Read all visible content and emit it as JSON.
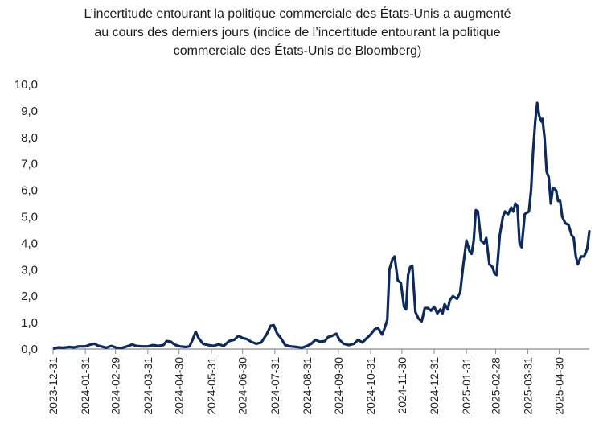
{
  "chart_data": {
    "type": "line",
    "title": [
      "L’incertitude entourant la politique commerciale des États-Unis a augmenté",
      "au cours des derniers jours (indice de l’incertitude entourant la politique",
      "commerciale des États-Unis de Bloomberg)"
    ],
    "xlabel": "",
    "ylabel": "",
    "x_range": [
      "2023-12-31",
      "2025-05-29"
    ],
    "ylim": [
      0,
      10
    ],
    "y_ticks": [
      "0,0",
      "1,0",
      "2,0",
      "3,0",
      "4,0",
      "5,0",
      "6,0",
      "7,0",
      "8,0",
      "9,0",
      "10,0"
    ],
    "x_ticks": [
      "2023-12-31",
      "2024-01-31",
      "2024-02-29",
      "2024-03-31",
      "2024-04-30",
      "2024-05-31",
      "2024-06-30",
      "2024-07-31",
      "2024-08-31",
      "2024-09-30",
      "2024-10-31",
      "2024-11-30",
      "2024-12-31",
      "2025-01-31",
      "2025-02-28",
      "2025-03-31",
      "2025-04-30"
    ],
    "grid": false,
    "line_color": "#0e2a5c",
    "series": [
      {
        "points": [
          [
            "2024-01-01",
            0.02
          ],
          [
            "2024-01-05",
            0.06
          ],
          [
            "2024-01-10",
            0.05
          ],
          [
            "2024-01-15",
            0.08
          ],
          [
            "2024-01-20",
            0.06
          ],
          [
            "2024-01-25",
            0.1
          ],
          [
            "2024-01-31",
            0.1
          ],
          [
            "2024-02-05",
            0.17
          ],
          [
            "2024-02-09",
            0.2
          ],
          [
            "2024-02-12",
            0.13
          ],
          [
            "2024-02-15",
            0.1
          ],
          [
            "2024-02-20",
            0.05
          ],
          [
            "2024-02-25",
            0.12
          ],
          [
            "2024-03-01",
            0.05
          ],
          [
            "2024-03-06",
            0.04
          ],
          [
            "2024-03-11",
            0.1
          ],
          [
            "2024-03-16",
            0.17
          ],
          [
            "2024-03-20",
            0.12
          ],
          [
            "2024-03-25",
            0.1
          ],
          [
            "2024-03-31",
            0.1
          ],
          [
            "2024-04-05",
            0.15
          ],
          [
            "2024-04-10",
            0.12
          ],
          [
            "2024-04-15",
            0.15
          ],
          [
            "2024-04-18",
            0.3
          ],
          [
            "2024-04-22",
            0.28
          ],
          [
            "2024-04-26",
            0.16
          ],
          [
            "2024-05-01",
            0.1
          ],
          [
            "2024-05-06",
            0.08
          ],
          [
            "2024-05-10",
            0.1
          ],
          [
            "2024-05-13",
            0.35
          ],
          [
            "2024-05-16",
            0.65
          ],
          [
            "2024-05-19",
            0.4
          ],
          [
            "2024-05-23",
            0.2
          ],
          [
            "2024-05-28",
            0.15
          ],
          [
            "2024-06-02",
            0.12
          ],
          [
            "2024-06-07",
            0.18
          ],
          [
            "2024-06-12",
            0.12
          ],
          [
            "2024-06-17",
            0.3
          ],
          [
            "2024-06-22",
            0.35
          ],
          [
            "2024-06-26",
            0.5
          ],
          [
            "2024-06-30",
            0.42
          ],
          [
            "2024-07-04",
            0.38
          ],
          [
            "2024-07-08",
            0.28
          ],
          [
            "2024-07-13",
            0.2
          ],
          [
            "2024-07-18",
            0.25
          ],
          [
            "2024-07-23",
            0.55
          ],
          [
            "2024-07-27",
            0.88
          ],
          [
            "2024-07-30",
            0.9
          ],
          [
            "2024-08-02",
            0.6
          ],
          [
            "2024-08-06",
            0.4
          ],
          [
            "2024-08-10",
            0.15
          ],
          [
            "2024-08-15",
            0.1
          ],
          [
            "2024-08-21",
            0.08
          ],
          [
            "2024-08-26",
            0.05
          ],
          [
            "2024-08-31",
            0.12
          ],
          [
            "2024-09-04",
            0.2
          ],
          [
            "2024-09-08",
            0.35
          ],
          [
            "2024-09-12",
            0.28
          ],
          [
            "2024-09-17",
            0.3
          ],
          [
            "2024-09-20",
            0.45
          ],
          [
            "2024-09-24",
            0.5
          ],
          [
            "2024-09-28",
            0.58
          ],
          [
            "2024-10-01",
            0.35
          ],
          [
            "2024-10-05",
            0.2
          ],
          [
            "2024-10-10",
            0.15
          ],
          [
            "2024-10-15",
            0.2
          ],
          [
            "2024-10-19",
            0.35
          ],
          [
            "2024-10-23",
            0.25
          ],
          [
            "2024-10-27",
            0.4
          ],
          [
            "2024-10-31",
            0.55
          ],
          [
            "2024-11-04",
            0.75
          ],
          [
            "2024-11-07",
            0.8
          ],
          [
            "2024-11-11",
            0.55
          ],
          [
            "2024-11-13",
            0.75
          ],
          [
            "2024-11-16",
            1.1
          ],
          [
            "2024-11-18",
            3.0
          ],
          [
            "2024-11-21",
            3.4
          ],
          [
            "2024-11-23",
            3.5
          ],
          [
            "2024-11-26",
            2.6
          ],
          [
            "2024-11-29",
            2.5
          ],
          [
            "2024-12-02",
            1.6
          ],
          [
            "2024-12-04",
            1.5
          ],
          [
            "2024-12-06",
            2.8
          ],
          [
            "2024-12-08",
            3.1
          ],
          [
            "2024-12-10",
            3.15
          ],
          [
            "2024-12-13",
            1.4
          ],
          [
            "2024-12-16",
            1.15
          ],
          [
            "2024-12-19",
            1.05
          ],
          [
            "2024-12-22",
            1.55
          ],
          [
            "2024-12-25",
            1.55
          ],
          [
            "2024-12-28",
            1.45
          ],
          [
            "2024-12-31",
            1.6
          ],
          [
            "2025-01-03",
            1.35
          ],
          [
            "2025-01-06",
            1.5
          ],
          [
            "2025-01-08",
            1.35
          ],
          [
            "2025-01-10",
            1.7
          ],
          [
            "2025-01-13",
            1.5
          ],
          [
            "2025-01-15",
            1.85
          ],
          [
            "2025-01-18",
            2.0
          ],
          [
            "2025-01-22",
            1.9
          ],
          [
            "2025-01-25",
            2.15
          ],
          [
            "2025-01-28",
            3.2
          ],
          [
            "2025-01-31",
            4.1
          ],
          [
            "2025-02-03",
            3.7
          ],
          [
            "2025-02-05",
            3.6
          ],
          [
            "2025-02-07",
            4.1
          ],
          [
            "2025-02-09",
            5.25
          ],
          [
            "2025-02-11",
            5.2
          ],
          [
            "2025-02-14",
            4.1
          ],
          [
            "2025-02-17",
            4.0
          ],
          [
            "2025-02-19",
            4.2
          ],
          [
            "2025-02-22",
            3.2
          ],
          [
            "2025-02-25",
            3.1
          ],
          [
            "2025-02-27",
            2.85
          ],
          [
            "2025-03-01",
            2.8
          ],
          [
            "2025-03-04",
            4.3
          ],
          [
            "2025-03-07",
            5.0
          ],
          [
            "2025-03-09",
            5.2
          ],
          [
            "2025-03-12",
            5.1
          ],
          [
            "2025-03-15",
            5.35
          ],
          [
            "2025-03-17",
            5.2
          ],
          [
            "2025-03-19",
            5.5
          ],
          [
            "2025-03-21",
            5.4
          ],
          [
            "2025-03-23",
            4.0
          ],
          [
            "2025-03-25",
            3.85
          ],
          [
            "2025-03-28",
            5.1
          ],
          [
            "2025-04-01",
            5.2
          ],
          [
            "2025-04-03",
            6.0
          ],
          [
            "2025-04-05",
            7.5
          ],
          [
            "2025-04-07",
            8.6
          ],
          [
            "2025-04-09",
            9.3
          ],
          [
            "2025-04-11",
            8.8
          ],
          [
            "2025-04-13",
            8.6
          ],
          [
            "2025-04-14",
            8.7
          ],
          [
            "2025-04-16",
            8.0
          ],
          [
            "2025-04-18",
            6.7
          ],
          [
            "2025-04-20",
            6.5
          ],
          [
            "2025-04-22",
            5.5
          ],
          [
            "2025-04-24",
            6.1
          ],
          [
            "2025-04-27",
            6.0
          ],
          [
            "2025-04-29",
            5.6
          ],
          [
            "2025-05-01",
            5.6
          ],
          [
            "2025-05-03",
            5.0
          ],
          [
            "2025-05-06",
            4.75
          ],
          [
            "2025-05-09",
            4.7
          ],
          [
            "2025-05-12",
            4.3
          ],
          [
            "2025-05-14",
            4.2
          ],
          [
            "2025-05-16",
            3.5
          ],
          [
            "2025-05-18",
            3.2
          ],
          [
            "2025-05-21",
            3.5
          ],
          [
            "2025-05-24",
            3.5
          ],
          [
            "2025-05-27",
            3.8
          ],
          [
            "2025-05-29",
            4.45
          ]
        ]
      }
    ]
  }
}
